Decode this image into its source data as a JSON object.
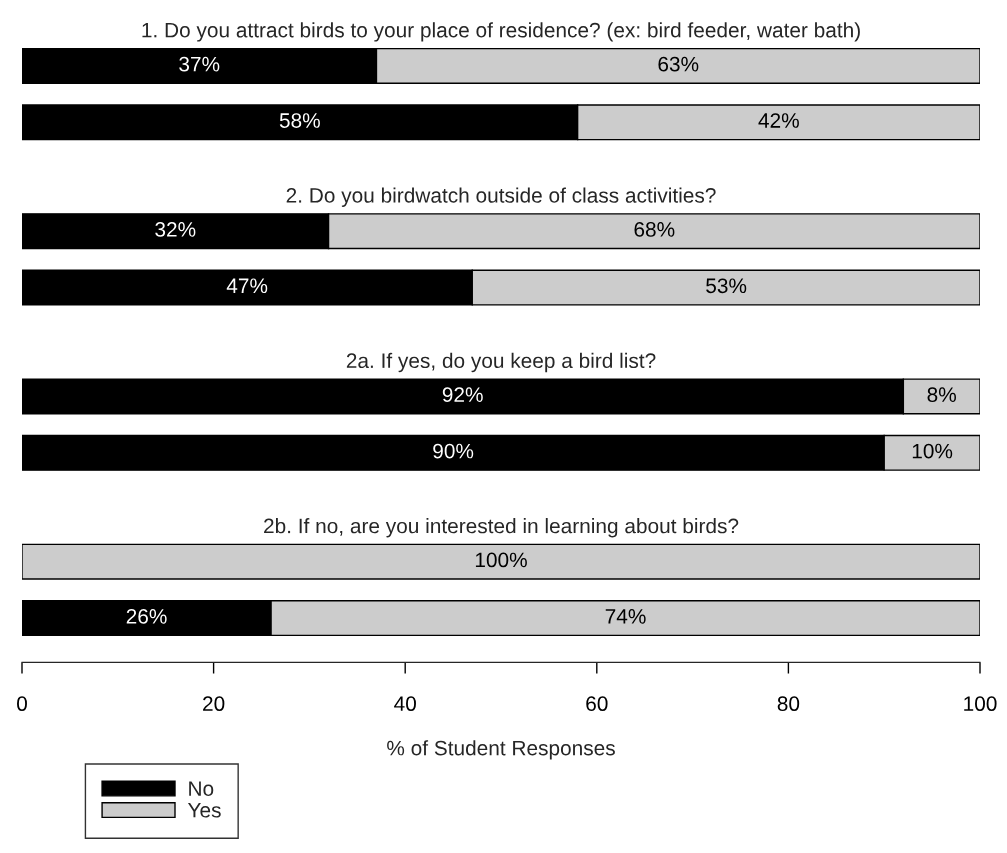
{
  "chart_data": {
    "type": "bar",
    "orientation": "horizontal",
    "stacked": true,
    "categories": [
      null,
      null,
      null,
      null,
      null,
      null,
      null,
      null
    ],
    "xlim": [
      0,
      100
    ],
    "xticks": [
      0,
      20,
      40,
      60,
      80,
      100
    ],
    "xlabel": "% of Student Responses",
    "tick_labels": "x",
    "legend": "bottom left",
    "annotations": [
      "1. Do you attract birds to your place of residence? (ex: bird feeder, water bath)",
      "2. Do you birdwatch outside of class activities?",
      "2a. If yes, do you keep a bird list?",
      "2b. If no, are you interested in learning about birds?"
    ],
    "series": [
      {
        "name": "No",
        "color": "#000000",
        "values": [
          37,
          58,
          32,
          47,
          92,
          90,
          0,
          26
        ],
        "value_labels": [
          "37%",
          "58%",
          "32%",
          "47%",
          "92%",
          "90%",
          null,
          "26%"
        ]
      },
      {
        "name": "Yes",
        "color": "#cccccc",
        "values": [
          63,
          42,
          68,
          53,
          8,
          10,
          100,
          74
        ],
        "value_labels": [
          "63%",
          "42%",
          "68%",
          "53%",
          "8%",
          "10%",
          "100%",
          "74%"
        ]
      }
    ]
  }
}
